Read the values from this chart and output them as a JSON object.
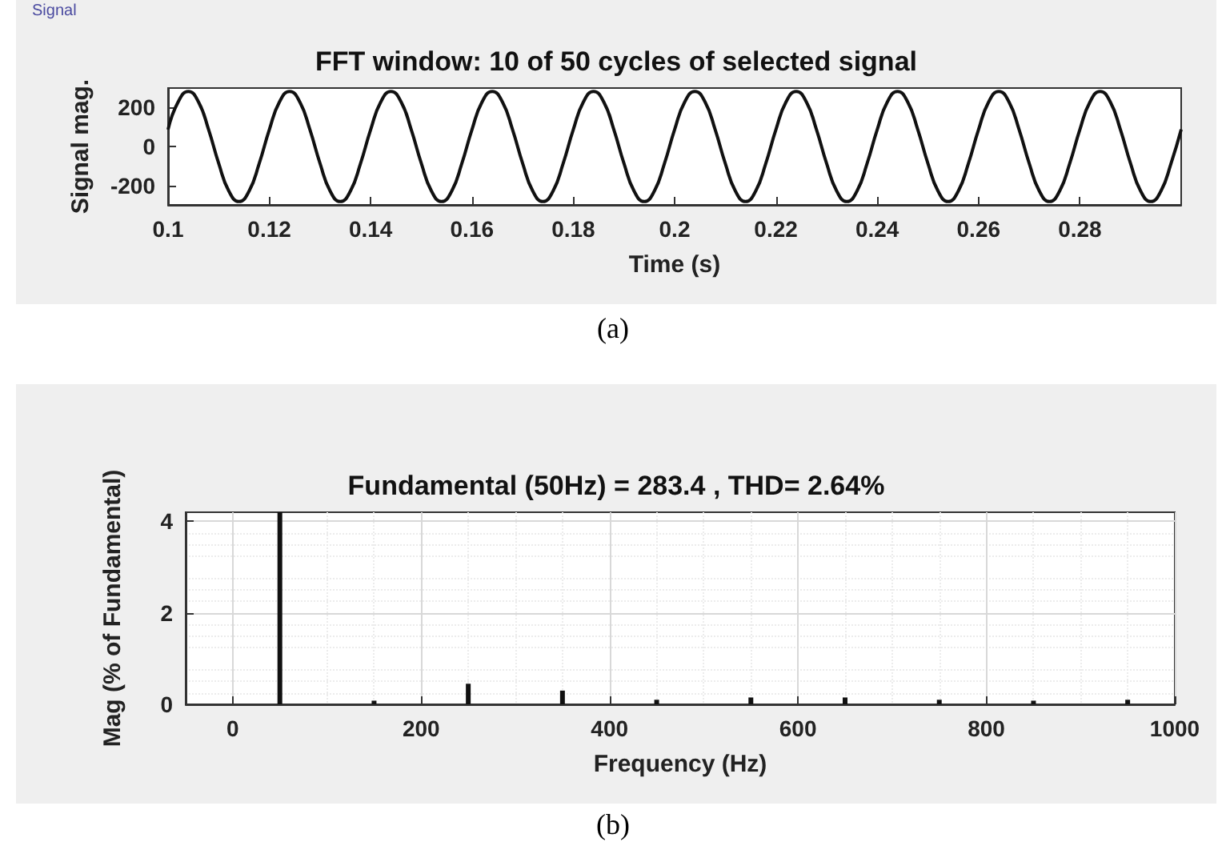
{
  "chart_data": [
    {
      "type": "line",
      "title": "FFT window: 10 of 50 cycles of selected signal",
      "xlabel": "Time (s)",
      "ylabel": "Signal mag.",
      "annotations": [
        "Signal",
        "(a)"
      ],
      "x": [
        0.1,
        0.102,
        0.104,
        0.106,
        0.108,
        0.11,
        0.112,
        0.114,
        0.116,
        0.118,
        0.12,
        0.122,
        0.124,
        0.126,
        0.128,
        0.13,
        0.132,
        0.134,
        0.136,
        0.138,
        0.14,
        0.142,
        0.144,
        0.146,
        0.148,
        0.15,
        0.152,
        0.154,
        0.156,
        0.158,
        0.16,
        0.162,
        0.164,
        0.166,
        0.168,
        0.17,
        0.172,
        0.174,
        0.176,
        0.178,
        0.18,
        0.182,
        0.184,
        0.186,
        0.188,
        0.19,
        0.192,
        0.194,
        0.196,
        0.198,
        0.2,
        0.202,
        0.204,
        0.206,
        0.208,
        0.21,
        0.212,
        0.214,
        0.216,
        0.218,
        0.22,
        0.222,
        0.224,
        0.226,
        0.228,
        0.23,
        0.232,
        0.234,
        0.236,
        0.238,
        0.24,
        0.242,
        0.244,
        0.246,
        0.248,
        0.25,
        0.252,
        0.254,
        0.256,
        0.258,
        0.26,
        0.262,
        0.264,
        0.266,
        0.268,
        0.27,
        0.272,
        0.274,
        0.276,
        0.278,
        0.28,
        0.282,
        0.284,
        0.286,
        0.288,
        0.29,
        0.292,
        0.294,
        0.296,
        0.298,
        0.3
      ],
      "series": [
        {
          "color": "#111111",
          "values": [
            87,
            229,
            283,
            229,
            87,
            -87,
            -229,
            -283,
            -229,
            -87,
            87,
            229,
            283,
            229,
            87,
            -87,
            -229,
            -283,
            -229,
            -87,
            87,
            229,
            283,
            229,
            87,
            -87,
            -229,
            -283,
            -229,
            -87,
            87,
            229,
            283,
            229,
            87,
            -87,
            -229,
            -283,
            -229,
            -87,
            87,
            229,
            283,
            229,
            87,
            -87,
            -229,
            -283,
            -229,
            -87,
            87,
            229,
            283,
            229,
            87,
            -87,
            -229,
            -283,
            -229,
            -87,
            87,
            229,
            283,
            229,
            87,
            -87,
            -229,
            -283,
            -229,
            -87,
            87,
            229,
            283,
            229,
            87,
            -87,
            -229,
            -283,
            -229,
            -87,
            87,
            229,
            283,
            229,
            87,
            -87,
            -229,
            -283,
            -229,
            -87,
            87,
            229,
            283,
            229,
            87,
            -87,
            -229,
            -283,
            -229,
            -87,
            87
          ]
        }
      ],
      "xlim": [
        0.1,
        0.3
      ],
      "xticks": [
        0.1,
        0.12,
        0.14,
        0.16,
        0.18,
        0.2,
        0.22,
        0.24,
        0.26,
        0.28
      ],
      "ylim": [
        -300,
        300
      ],
      "yticks": [
        -200,
        0,
        200
      ],
      "marker": "none"
    },
    {
      "type": "bar",
      "title": "Fundamental (50Hz) = 283.4 , THD= 2.64%",
      "xlabel": "Frequency (Hz)",
      "ylabel": "Mag (% of Fundamental)",
      "annotations": [
        "(b)"
      ],
      "x": [
        50,
        150,
        250,
        350,
        450,
        550,
        650,
        750,
        850,
        950
      ],
      "series": [
        {
          "color": "#111111",
          "values": [
            4.2,
            0.08,
            0.45,
            0.3,
            0.1,
            0.15,
            0.15,
            0.1,
            0.08,
            0.1
          ]
        }
      ],
      "xlim": [
        -50,
        1000
      ],
      "xticks": [
        0,
        200,
        400,
        600,
        800,
        1000
      ],
      "ylim": [
        0,
        4.2
      ],
      "yticks": [
        0,
        2,
        4
      ],
      "grid": true
    }
  ]
}
